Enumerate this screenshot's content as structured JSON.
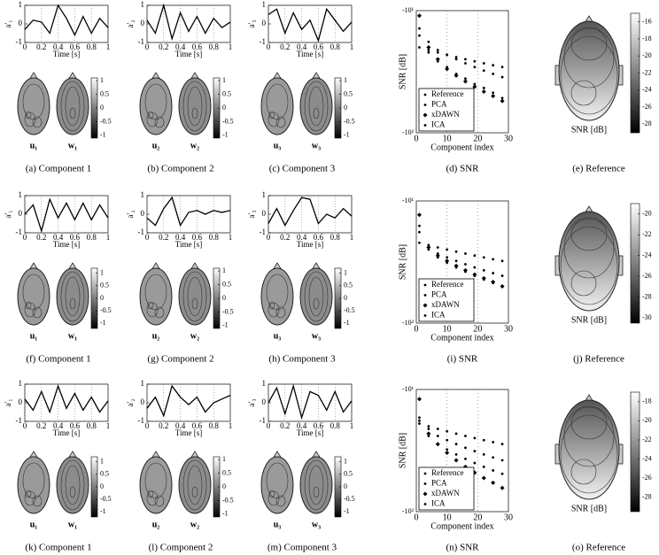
{
  "rows": [
    {
      "components": [
        {
          "ylabel": "a′₁",
          "ylim": [
            -1,
            1
          ],
          "yticks": [
            1,
            0,
            -1
          ],
          "xlim": [
            0,
            1
          ],
          "xticks": [
            0,
            0.2,
            0.4,
            0.6,
            0.8,
            1
          ],
          "xlabel": "Time [s]",
          "x": [
            0,
            0.1,
            0.2,
            0.3,
            0.4,
            0.5,
            0.6,
            0.7,
            0.8,
            0.9,
            1
          ],
          "values": [
            -0.3,
            0.2,
            0.1,
            -0.5,
            1,
            0.3,
            -0.6,
            0.4,
            -0.5,
            0.3,
            -0.2
          ],
          "map_labels": [
            "u₁",
            "w₁"
          ],
          "colorbar_lim": [
            -1.1,
            1.1
          ],
          "colorbar_ticks": [
            1,
            0.5,
            0,
            -0.5,
            -1
          ],
          "caption": "(a) Component 1"
        },
        {
          "ylabel": "a′₂",
          "ylim": [
            -1,
            1
          ],
          "yticks": [
            1,
            0,
            -1
          ],
          "xlim": [
            0,
            1
          ],
          "xticks": [
            0,
            0.2,
            0.4,
            0.6,
            0.8,
            1
          ],
          "xlabel": "Time [s]",
          "x": [
            0,
            0.1,
            0.2,
            0.3,
            0.4,
            0.5,
            0.6,
            0.7,
            0.8,
            0.9,
            1
          ],
          "values": [
            0.2,
            -0.5,
            1,
            -0.8,
            0.6,
            -0.4,
            0.4,
            -0.5,
            0.3,
            -0.2,
            0.1
          ],
          "map_labels": [
            "u₂",
            "w₂"
          ],
          "colorbar_lim": [
            -1.1,
            1.1
          ],
          "colorbar_ticks": [
            1,
            0.5,
            0,
            -0.5,
            -1
          ],
          "caption": "(b) Component 2"
        },
        {
          "ylabel": "a′₃",
          "ylim": [
            -1,
            1
          ],
          "yticks": [
            1,
            0,
            -1
          ],
          "xlim": [
            0,
            1
          ],
          "xticks": [
            0,
            0.2,
            0.4,
            0.6,
            0.8,
            1
          ],
          "xlabel": "Time [s]",
          "x": [
            0,
            0.1,
            0.2,
            0.3,
            0.4,
            0.5,
            0.6,
            0.7,
            0.8,
            0.9,
            1
          ],
          "values": [
            0.5,
            0.8,
            -0.5,
            0.6,
            -0.3,
            0.2,
            -0.9,
            0.8,
            0.2,
            -0.4,
            0.1
          ],
          "map_labels": [
            "u₃",
            "w₃"
          ],
          "colorbar_lim": [
            -1.1,
            1.1
          ],
          "colorbar_ticks": [
            1,
            0.5,
            0,
            -0.5,
            -1
          ],
          "caption": "(c) Component 3"
        }
      ],
      "snr": {
        "type": "scatter",
        "log_y": true,
        "ylabel": "SNR [dB]",
        "ylim": [
          -100,
          -10
        ],
        "yticks": [
          {
            "value": -10,
            "label": "-10¹"
          },
          {
            "value": -100,
            "label": "-10²"
          }
        ],
        "xlim": [
          0,
          30
        ],
        "xticks": [
          0,
          10,
          20,
          30
        ],
        "xlabel": "Component index",
        "x": [
          1,
          4,
          7,
          10,
          13,
          16,
          19,
          22,
          25,
          28
        ],
        "grid": true,
        "series": [
          {
            "name": "Reference",
            "color": "#000000",
            "marker": "dot",
            "values": [
              -20,
              -21,
              -22,
              -23,
              -24,
              -25,
              -26,
              -27,
              -28,
              -29
            ]
          },
          {
            "name": "PCA",
            "color": "#000000",
            "marker": "dot",
            "values": [
              -14,
              -18,
              -21,
              -23,
              -25,
              -27,
              -29,
              -31,
              -33,
              -35
            ]
          },
          {
            "name": "xDAWN",
            "color": "#000000",
            "marker": "diamond",
            "values": [
              -11,
              -20,
              -25,
              -30,
              -34,
              -38,
              -42,
              -46,
              -50,
              -55
            ]
          },
          {
            "name": "ICA",
            "color": "#000000",
            "marker": "dot",
            "values": [
              -16,
              -22,
              -26,
              -29,
              -33,
              -36,
              -40,
              -43,
              -47,
              -52
            ]
          }
        ],
        "caption": "(d) SNR"
      },
      "reference": {
        "label": "SNR [dB]",
        "colorbar_lim": [
          -29,
          -15
        ],
        "colorbar_ticks": [
          -16,
          -18,
          -20,
          -22,
          -24,
          -26,
          -28
        ],
        "caption": "(e) Reference"
      }
    },
    {
      "components": [
        {
          "ylabel": "a′₁",
          "ylim": [
            -1,
            1
          ],
          "yticks": [
            1,
            0,
            -1
          ],
          "xlim": [
            0,
            1
          ],
          "xticks": [
            0,
            0.2,
            0.4,
            0.6,
            0.8,
            1
          ],
          "xlabel": "Time [s]",
          "x": [
            0,
            0.1,
            0.2,
            0.3,
            0.4,
            0.5,
            0.6,
            0.7,
            0.8,
            0.9,
            1
          ],
          "values": [
            0,
            0.5,
            -0.9,
            0.8,
            -0.2,
            0.6,
            -0.3,
            0.6,
            -0.3,
            0.5,
            -0.2
          ],
          "map_labels": [
            "u₁",
            "w₁"
          ],
          "colorbar_lim": [
            -1.2,
            1.2
          ],
          "colorbar_ticks": [
            1,
            0.5,
            0,
            -0.5,
            -1
          ],
          "caption": "(f) Component 1"
        },
        {
          "ylabel": "a′₂",
          "ylim": [
            -1,
            1
          ],
          "yticks": [
            1,
            0,
            -1
          ],
          "xlim": [
            0,
            1
          ],
          "xticks": [
            0,
            0.2,
            0.4,
            0.6,
            0.8,
            1
          ],
          "xlabel": "Time [s]",
          "x": [
            0,
            0.1,
            0.2,
            0.3,
            0.4,
            0.5,
            0.6,
            0.7,
            0.8,
            0.9,
            1
          ],
          "values": [
            -0.2,
            -0.6,
            0.3,
            0.9,
            -0.6,
            0.1,
            0.2,
            0,
            0.2,
            0.1,
            0.2
          ],
          "map_labels": [
            "u₂",
            "w₂"
          ],
          "colorbar_lim": [
            -1.1,
            1.1
          ],
          "colorbar_ticks": [
            1,
            0.5,
            0,
            -0.5,
            -1
          ],
          "caption": "(g) Component 2"
        },
        {
          "ylabel": "a′₃",
          "ylim": [
            -1,
            1
          ],
          "yticks": [
            1,
            0,
            -1
          ],
          "xlim": [
            0,
            1
          ],
          "xticks": [
            0,
            0.2,
            0.4,
            0.6,
            0.8,
            1
          ],
          "xlabel": "Time [s]",
          "x": [
            0,
            0.1,
            0.2,
            0.3,
            0.4,
            0.5,
            0.6,
            0.7,
            0.8,
            0.9,
            1
          ],
          "values": [
            -0.5,
            0.3,
            -0.6,
            0.2,
            0.9,
            0.8,
            -0.5,
            0,
            -0.2,
            0.3,
            -0.1
          ],
          "map_labels": [
            "u₃",
            "w₃"
          ],
          "colorbar_lim": [
            -1.2,
            1.2
          ],
          "colorbar_ticks": [
            1,
            0.5,
            0,
            -0.5,
            -1
          ],
          "caption": "(h) Component 3"
        }
      ],
      "snr": {
        "type": "scatter",
        "log_y": true,
        "ylabel": "SNR [dB]",
        "ylim": [
          -100,
          -10
        ],
        "yticks": [
          {
            "value": -10,
            "label": "-10¹"
          },
          {
            "value": -100,
            "label": "-10²"
          }
        ],
        "xlim": [
          0,
          30
        ],
        "xticks": [
          0,
          10,
          20,
          30
        ],
        "xlabel": "Component index",
        "x": [
          1,
          4,
          7,
          10,
          13,
          16,
          19,
          22,
          25,
          28
        ],
        "grid": true,
        "series": [
          {
            "name": "Reference",
            "color": "#000000",
            "marker": "dot",
            "values": [
              -22,
              -23,
              -24,
              -25,
              -26,
              -27,
              -28,
              -29,
              -30,
              -31
            ]
          },
          {
            "name": "PCA",
            "color": "#000000",
            "marker": "dot",
            "values": [
              -18,
              -24,
              -27,
              -29,
              -31,
              -33,
              -35,
              -37,
              -39,
              -41
            ]
          },
          {
            "name": "xDAWN",
            "color": "#000000",
            "marker": "diamond",
            "values": [
              -13,
              -24,
              -28,
              -31,
              -34,
              -37,
              -40,
              -43,
              -46,
              -50
            ]
          },
          {
            "name": "ICA",
            "color": "#000000",
            "marker": "dot",
            "values": [
              -16,
              -25,
              -29,
              -32,
              -35,
              -38,
              -41,
              -44,
              -47,
              -50
            ]
          }
        ],
        "caption": "(i) SNR"
      },
      "reference": {
        "label": "SNR [dB]",
        "colorbar_lim": [
          -30.5,
          -19
        ],
        "colorbar_ticks": [
          -20,
          -22,
          -24,
          -26,
          -28,
          -30
        ],
        "caption": "(j) Reference"
      }
    },
    {
      "components": [
        {
          "ylabel": "a′₁",
          "ylim": [
            -1,
            1
          ],
          "yticks": [
            1,
            0,
            -1
          ],
          "xlim": [
            0,
            1
          ],
          "xticks": [
            0,
            0.2,
            0.4,
            0.6,
            0.8,
            1
          ],
          "xlabel": "Time [s]",
          "x": [
            0,
            0.1,
            0.2,
            0.3,
            0.4,
            0.5,
            0.6,
            0.7,
            0.8,
            0.9,
            1
          ],
          "values": [
            0.2,
            -0.4,
            0.6,
            -0.5,
            0.9,
            -0.3,
            0.5,
            -0.4,
            0.3,
            -0.5,
            0.1
          ],
          "map_labels": [
            "u₁",
            "w₁"
          ],
          "colorbar_lim": [
            -1.2,
            1.2
          ],
          "colorbar_ticks": [
            1,
            0.5,
            0,
            -0.5,
            -1
          ],
          "caption": "(k) Component 1"
        },
        {
          "ylabel": "a′₂",
          "ylim": [
            -1,
            1
          ],
          "yticks": [
            1,
            0,
            -1
          ],
          "xlim": [
            0,
            1
          ],
          "xticks": [
            0,
            0.2,
            0.4,
            0.6,
            0.8,
            1
          ],
          "xlabel": "Time [s]",
          "x": [
            0,
            0.1,
            0.2,
            0.3,
            0.4,
            0.5,
            0.6,
            0.7,
            0.8,
            0.9,
            1
          ],
          "values": [
            -0.3,
            0.3,
            -0.7,
            0.9,
            0.3,
            -0.1,
            0.3,
            -0.5,
            0,
            0.2,
            0.4
          ],
          "map_labels": [
            "u₂",
            "w₂"
          ],
          "colorbar_lim": [
            -1.1,
            1.1
          ],
          "colorbar_ticks": [
            1,
            0.5,
            0,
            -0.5,
            -1
          ],
          "caption": "(l) Component 2"
        },
        {
          "ylabel": "a′₃",
          "ylim": [
            -1,
            1
          ],
          "yticks": [
            1,
            0,
            -1
          ],
          "xlim": [
            0,
            1
          ],
          "xticks": [
            0,
            0.2,
            0.4,
            0.6,
            0.8,
            1
          ],
          "xlabel": "Time [s]",
          "x": [
            0,
            0.1,
            0.2,
            0.3,
            0.4,
            0.5,
            0.6,
            0.7,
            0.8,
            0.9,
            1
          ],
          "values": [
            0,
            0.8,
            -0.6,
            0.9,
            -0.8,
            0.6,
            0.4,
            -0.4,
            0.6,
            -0.5,
            0.1
          ],
          "map_labels": [
            "u₃",
            "w₃"
          ],
          "colorbar_lim": [
            -1.2,
            1.2
          ],
          "colorbar_ticks": [
            1,
            0.5,
            0,
            -0.5,
            -1
          ],
          "caption": "(m) Component 3"
        }
      ],
      "snr": {
        "type": "scatter",
        "log_y": true,
        "ylabel": "SNR [dB]",
        "ylim": [
          -100,
          -10
        ],
        "yticks": [
          {
            "value": -10,
            "label": "-10¹"
          },
          {
            "value": -100,
            "label": "-10²"
          }
        ],
        "xlim": [
          0,
          30
        ],
        "xticks": [
          0,
          10,
          20,
          30
        ],
        "xlabel": "Component index",
        "x": [
          1,
          4,
          7,
          10,
          13,
          16,
          19,
          22,
          25,
          28
        ],
        "grid": true,
        "series": [
          {
            "name": "Reference",
            "color": "#000000",
            "marker": "dot",
            "values": [
              -19,
              -20,
              -21,
              -22,
              -23,
              -24,
              -25,
              -26,
              -27,
              -28
            ]
          },
          {
            "name": "PCA",
            "color": "#000000",
            "marker": "dot",
            "values": [
              -17,
              -21,
              -24,
              -26,
              -28,
              -30,
              -32,
              -34,
              -36,
              -38
            ]
          },
          {
            "name": "xDAWN",
            "color": "#000000",
            "marker": "diamond",
            "values": [
              -12,
              -23,
              -28,
              -33,
              -38,
              -43,
              -48,
              -53,
              -58,
              -64
            ]
          },
          {
            "name": "ICA",
            "color": "#000000",
            "marker": "dot",
            "values": [
              -18,
              -24,
              -28,
              -31,
              -34,
              -37,
              -40,
              -43,
              -46,
              -49
            ]
          }
        ],
        "caption": "(n) SNR"
      },
      "reference": {
        "label": "SNR [dB]",
        "colorbar_lim": [
          -29.5,
          -17
        ],
        "colorbar_ticks": [
          -18,
          -20,
          -22,
          -24,
          -26,
          -28
        ],
        "caption": "(o) Reference"
      }
    }
  ]
}
